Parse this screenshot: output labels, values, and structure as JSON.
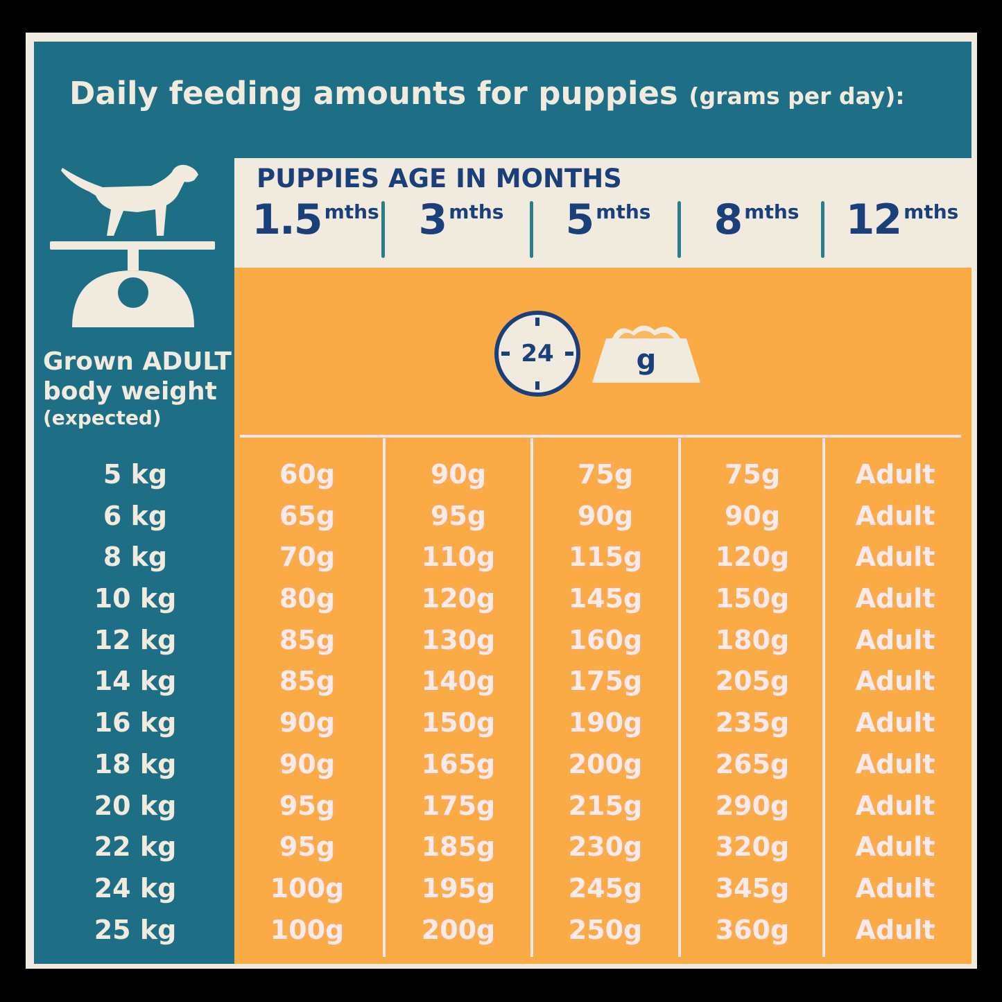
{
  "title": {
    "main": "Daily feeding amounts for puppies",
    "sub": "(grams per day):"
  },
  "header": {
    "age_heading": "PUPPIES AGE IN MONTHS",
    "months": [
      {
        "num": "1.5",
        "unit": "mths"
      },
      {
        "num": "3",
        "unit": "mths"
      },
      {
        "num": "5",
        "unit": "mths"
      },
      {
        "num": "8",
        "unit": "mths"
      },
      {
        "num": "12",
        "unit": "mths"
      }
    ]
  },
  "icons": {
    "clock_value": "24",
    "bowl_label": "g",
    "dog_scale": "dog-on-scale-icon"
  },
  "left_label": {
    "line1": "Grown ADULT",
    "line2": "body weight",
    "line3": "(expected)"
  },
  "weights": [
    "5 kg",
    "6 kg",
    "8 kg",
    "10 kg",
    "12 kg",
    "14 kg",
    "16 kg",
    "18 kg",
    "20 kg",
    "22 kg",
    "24 kg",
    "25 kg"
  ],
  "table": [
    [
      "60g",
      "90g",
      "75g",
      "75g",
      "Adult"
    ],
    [
      "65g",
      "95g",
      "90g",
      "90g",
      "Adult"
    ],
    [
      "70g",
      "110g",
      "115g",
      "120g",
      "Adult"
    ],
    [
      "80g",
      "120g",
      "145g",
      "150g",
      "Adult"
    ],
    [
      "85g",
      "130g",
      "160g",
      "180g",
      "Adult"
    ],
    [
      "85g",
      "140g",
      "175g",
      "205g",
      "Adult"
    ],
    [
      "90g",
      "150g",
      "190g",
      "235g",
      "Adult"
    ],
    [
      "90g",
      "165g",
      "200g",
      "265g",
      "Adult"
    ],
    [
      "95g",
      "175g",
      "215g",
      "290g",
      "Adult"
    ],
    [
      "95g",
      "185g",
      "230g",
      "320g",
      "Adult"
    ],
    [
      "100g",
      "195g",
      "245g",
      "345g",
      "Adult"
    ],
    [
      "100g",
      "200g",
      "250g",
      "360g",
      "Adult"
    ]
  ],
  "colors": {
    "teal": "#1e6f86",
    "cream": "#f0ebde",
    "orange": "#fbab45",
    "navy": "#1b3f78"
  }
}
